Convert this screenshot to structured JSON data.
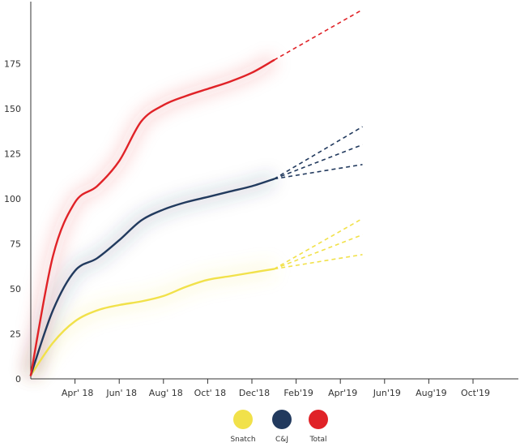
{
  "chart_data": {
    "type": "line",
    "x_tick_labels": [
      "Apr' 18",
      "Jun' 18",
      "Aug' 18",
      "Oct' 18",
      "Dec'18",
      "Feb'19",
      "Apr'19",
      "Jun'19",
      "Aug'19",
      "Oct'19"
    ],
    "y_tick_labels": [
      "0",
      "25",
      "50",
      "75",
      "100",
      "125",
      "150",
      "175"
    ],
    "ylim": [
      0,
      210
    ],
    "grid": false,
    "legend_position": "bottom",
    "series": [
      {
        "name": "Snatch",
        "color": "#f1e14a",
        "actual": [
          [
            0,
            2
          ],
          [
            1,
            20
          ],
          [
            2,
            32
          ],
          [
            3,
            38
          ],
          [
            4,
            41
          ],
          [
            5,
            43
          ],
          [
            6,
            46
          ],
          [
            7,
            51
          ],
          [
            8,
            55
          ],
          [
            9,
            57
          ],
          [
            10,
            59
          ],
          [
            11,
            61
          ]
        ],
        "projections": [
          [
            [
              11,
              61
            ],
            [
              15,
              69
            ]
          ],
          [
            [
              11,
              61
            ],
            [
              15,
              80
            ]
          ],
          [
            [
              11,
              61
            ],
            [
              15,
              89
            ]
          ]
        ]
      },
      {
        "name": "C&J",
        "color": "#223a5e",
        "actual": [
          [
            0,
            2
          ],
          [
            1,
            38
          ],
          [
            2,
            60
          ],
          [
            3,
            67
          ],
          [
            4,
            77
          ],
          [
            5,
            88
          ],
          [
            6,
            94
          ],
          [
            7,
            98
          ],
          [
            8,
            101
          ],
          [
            9,
            104
          ],
          [
            10,
            107
          ],
          [
            11,
            111
          ]
        ],
        "projections": [
          [
            [
              11,
              111
            ],
            [
              15,
              119
            ]
          ],
          [
            [
              11,
              111
            ],
            [
              15,
              130
            ]
          ],
          [
            [
              11,
              111
            ],
            [
              15,
              140
            ]
          ]
        ]
      },
      {
        "name": "Total",
        "color": "#e02227",
        "actual": [
          [
            0,
            2
          ],
          [
            1,
            68
          ],
          [
            2,
            98
          ],
          [
            3,
            107
          ],
          [
            4,
            121
          ],
          [
            5,
            143
          ],
          [
            6,
            152
          ],
          [
            7,
            157
          ],
          [
            8,
            161
          ],
          [
            9,
            165
          ],
          [
            10,
            170
          ],
          [
            11,
            177
          ]
        ],
        "projections": [
          [
            [
              11,
              177
            ],
            [
              15,
              205
            ]
          ]
        ]
      }
    ]
  }
}
